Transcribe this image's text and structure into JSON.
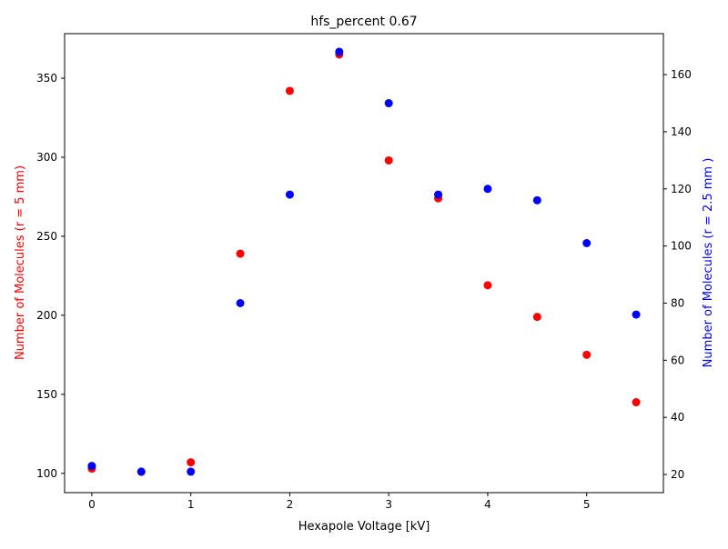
{
  "chart_data": {
    "type": "scatter",
    "title": "hfs_percent 0.67",
    "xlabel": "Hexapole Voltage [kV]",
    "ylabel_left": "Number of Molecules (r = 5 mm)",
    "ylabel_right": "Number of Molecules (r = 2.5 mm )",
    "xlim": [
      -0.275,
      5.775
    ],
    "ylim_left": [
      87.8,
      378.2
    ],
    "ylim_right": [
      13.65,
      174.35
    ],
    "x_ticks": [
      0,
      1,
      2,
      3,
      4,
      5
    ],
    "y_ticks_left": [
      100,
      150,
      200,
      250,
      300,
      350
    ],
    "y_ticks_right": [
      20,
      40,
      60,
      80,
      100,
      120,
      140,
      160
    ],
    "grid": false,
    "series": [
      {
        "axis": "left",
        "color": "#ff0000",
        "points": [
          {
            "x": 0.0,
            "y": 103
          },
          {
            "x": 0.5,
            "y": 101
          },
          {
            "x": 1.0,
            "y": 107
          },
          {
            "x": 1.5,
            "y": 239
          },
          {
            "x": 2.0,
            "y": 342
          },
          {
            "x": 2.5,
            "y": 365
          },
          {
            "x": 3.0,
            "y": 298
          },
          {
            "x": 3.5,
            "y": 274
          },
          {
            "x": 4.0,
            "y": 219
          },
          {
            "x": 4.5,
            "y": 199
          },
          {
            "x": 5.0,
            "y": 175
          },
          {
            "x": 5.5,
            "y": 145
          }
        ]
      },
      {
        "axis": "right",
        "color": "#0000ff",
        "points": [
          {
            "x": 0.0,
            "y": 23
          },
          {
            "x": 0.5,
            "y": 21
          },
          {
            "x": 1.0,
            "y": 21
          },
          {
            "x": 1.5,
            "y": 80
          },
          {
            "x": 2.0,
            "y": 118
          },
          {
            "x": 2.5,
            "y": 168
          },
          {
            "x": 3.0,
            "y": 150
          },
          {
            "x": 3.5,
            "y": 118
          },
          {
            "x": 4.0,
            "y": 120
          },
          {
            "x": 4.5,
            "y": 116
          },
          {
            "x": 5.0,
            "y": 101
          },
          {
            "x": 5.5,
            "y": 76
          }
        ]
      }
    ]
  }
}
